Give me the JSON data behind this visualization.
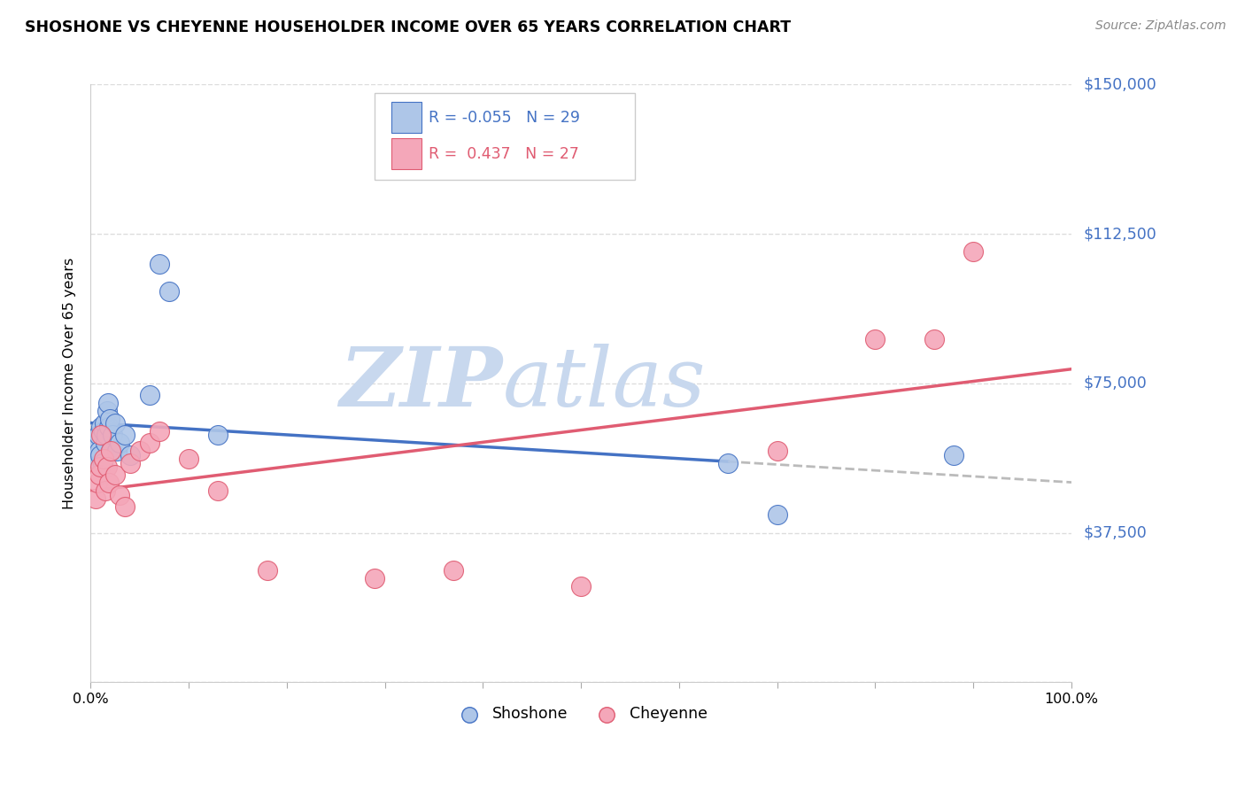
{
  "title": "SHOSHONE VS CHEYENNE HOUSEHOLDER INCOME OVER 65 YEARS CORRELATION CHART",
  "source": "Source: ZipAtlas.com",
  "ylabel": "Householder Income Over 65 years",
  "xlim": [
    0,
    1
  ],
  "ylim": [
    0,
    150000
  ],
  "yticks": [
    0,
    37500,
    75000,
    112500,
    150000
  ],
  "ytick_labels": [
    "",
    "$37,500",
    "$75,000",
    "$112,500",
    "$150,000"
  ],
  "xticks": [
    0,
    0.1,
    0.2,
    0.3,
    0.4,
    0.5,
    0.6,
    0.7,
    0.8,
    0.9,
    1.0
  ],
  "xtick_labels": [
    "0.0%",
    "",
    "",
    "",
    "",
    "",
    "",
    "",
    "",
    "",
    "100.0%"
  ],
  "shoshone_fill": "#aec6e8",
  "cheyenne_fill": "#f4a7b9",
  "shoshone_edge": "#4472c4",
  "cheyenne_edge": "#e05c72",
  "R_shoshone": -0.055,
  "N_shoshone": 29,
  "R_cheyenne": 0.437,
  "N_cheyenne": 27,
  "shoshone_x": [
    0.005,
    0.007,
    0.008,
    0.009,
    0.01,
    0.011,
    0.012,
    0.013,
    0.014,
    0.015,
    0.016,
    0.017,
    0.018,
    0.019,
    0.02,
    0.021,
    0.022,
    0.025,
    0.027,
    0.03,
    0.035,
    0.04,
    0.06,
    0.07,
    0.08,
    0.13,
    0.65,
    0.7,
    0.88
  ],
  "shoshone_y": [
    56000,
    60000,
    62000,
    58000,
    57000,
    64000,
    55000,
    63000,
    65000,
    60000,
    62000,
    68000,
    70000,
    64000,
    66000,
    58000,
    62000,
    65000,
    58000,
    60000,
    62000,
    57000,
    72000,
    105000,
    98000,
    62000,
    55000,
    42000,
    57000
  ],
  "cheyenne_x": [
    0.005,
    0.007,
    0.009,
    0.01,
    0.011,
    0.013,
    0.015,
    0.017,
    0.019,
    0.021,
    0.025,
    0.03,
    0.035,
    0.04,
    0.05,
    0.06,
    0.07,
    0.1,
    0.13,
    0.18,
    0.29,
    0.37,
    0.5,
    0.7,
    0.8,
    0.86,
    0.9
  ],
  "cheyenne_y": [
    46000,
    50000,
    52000,
    54000,
    62000,
    56000,
    48000,
    54000,
    50000,
    58000,
    52000,
    47000,
    44000,
    55000,
    58000,
    60000,
    63000,
    56000,
    48000,
    28000,
    26000,
    28000,
    24000,
    58000,
    86000,
    86000,
    108000
  ],
  "watermark_zip": "ZIP",
  "watermark_atlas": "atlas",
  "watermark_color": "#c8d8ee",
  "background_color": "#ffffff",
  "grid_color": "#dddddd",
  "legend_label_shoshone": "Shoshone",
  "legend_label_cheyenne": "Cheyenne",
  "shoshone_line_color": "#4472c4",
  "cheyenne_line_color": "#e05c72",
  "gray_dash_color": "#bbbbbb"
}
